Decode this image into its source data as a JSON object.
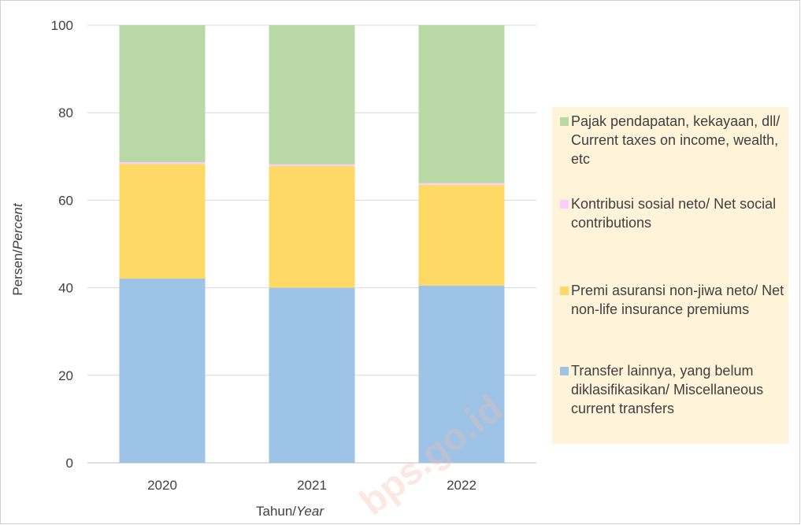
{
  "chart_data": {
    "type": "bar",
    "stacked": true,
    "categories": [
      "2020",
      "2021",
      "2022"
    ],
    "series": [
      {
        "name": "Transfer lainnya, yang belum diklasifikasikan/ Miscellaneous current transfers",
        "values": [
          42.1,
          40.0,
          40.5
        ],
        "color": "#9dc3e6"
      },
      {
        "name": "Premi asuransi non-jiwa neto/ Net non-life insurance premiums",
        "values": [
          26.2,
          27.8,
          23.0
        ],
        "color": "#ffd966"
      },
      {
        "name": "Kontribusi sosial neto/ Net social contributions",
        "values": [
          0.4,
          0.4,
          0.4
        ],
        "color": "#ffccff"
      },
      {
        "name": "Pajak pendapatan, kekayaan, dll/ Current taxes on income, wealth, etc",
        "values": [
          31.3,
          31.8,
          36.1
        ],
        "color": "#b8d9a5"
      }
    ],
    "ylim": [
      0,
      100
    ],
    "yticks": [
      "0",
      "20",
      "40",
      "60",
      "80",
      "100"
    ],
    "ylabel": "Persen/",
    "ylabel_italic": "Percent",
    "xlabel": "Tahun/",
    "xlabel_italic": "Year",
    "grid": true,
    "legend_placement": "right"
  },
  "legend": [
    {
      "label": "Pajak pendapatan, kekayaan, dll/ Current taxes on income, wealth, etc",
      "color": "#b8d9a5"
    },
    {
      "label": "Kontribusi sosial neto/ Net social contributions",
      "color": "#ffccff"
    },
    {
      "label": "Premi asuransi non-jiwa neto/ Net non-life insurance premiums",
      "color": "#ffd966"
    },
    {
      "label": "Transfer lainnya, yang belum diklasifikasikan/ Miscellaneous current transfers",
      "color": "#9dc3e6"
    }
  ],
  "watermark": "bps.go.id"
}
